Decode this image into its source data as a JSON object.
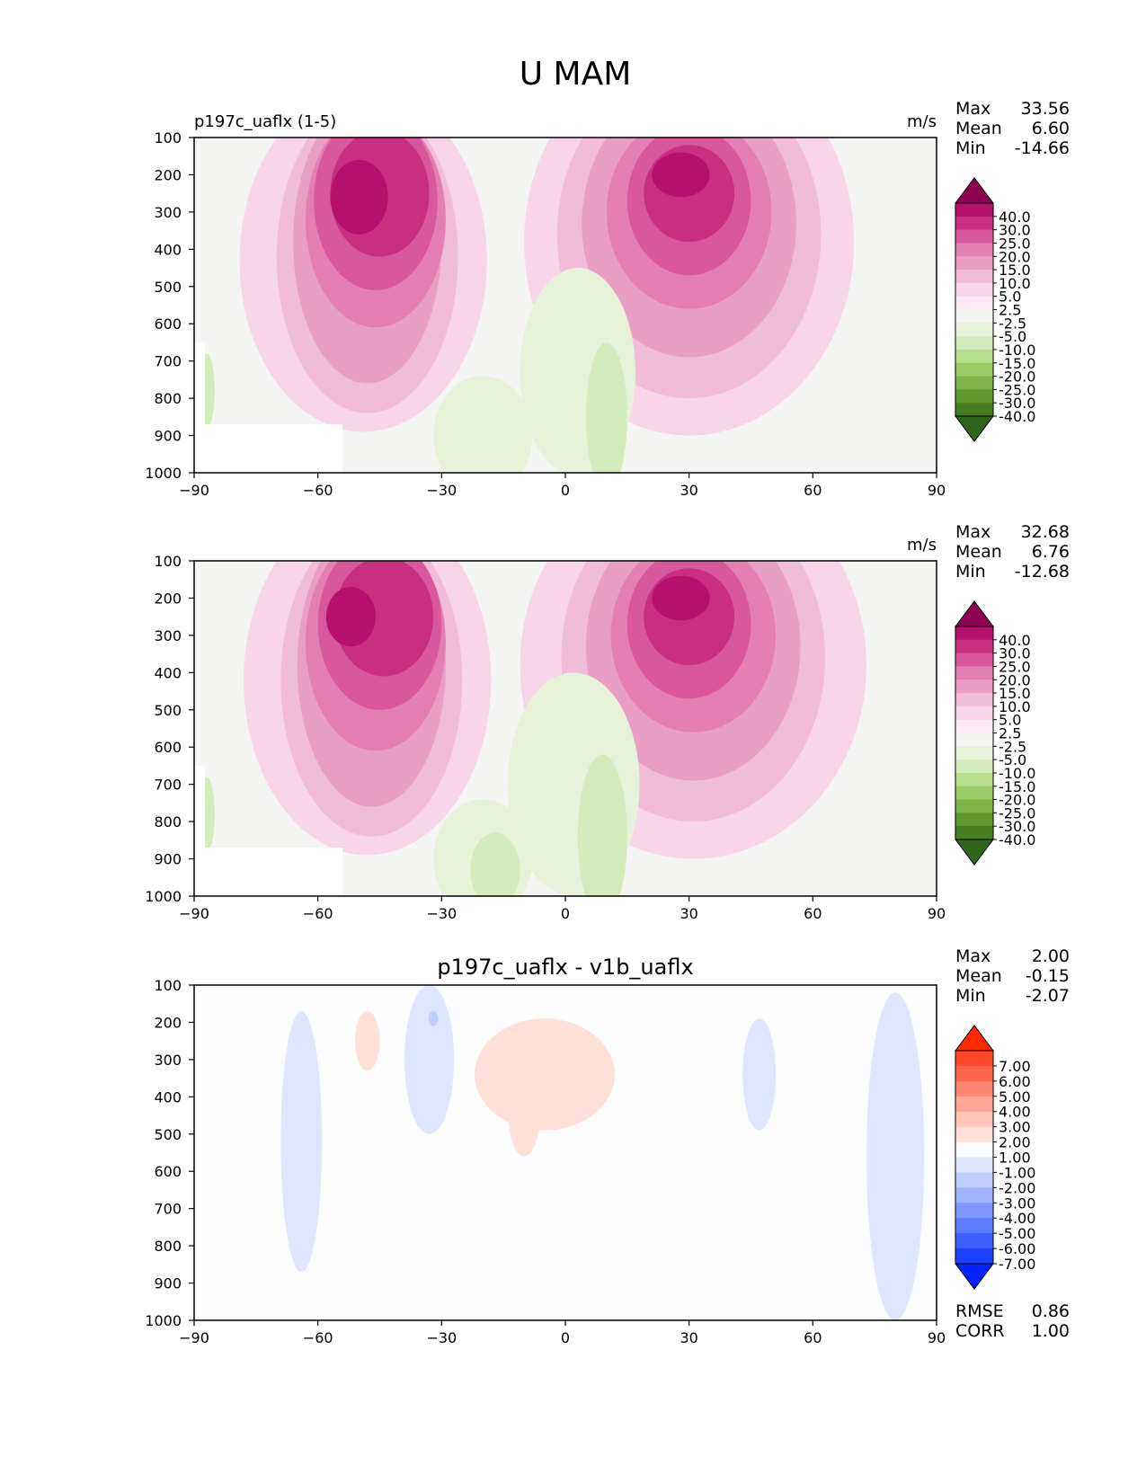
{
  "figure": {
    "title": "U MAM"
  },
  "chart_data": [
    {
      "type": "contour",
      "panel": "test",
      "title_left": "p197c_uaflx (1-5)",
      "title_center": "",
      "units": "m/s",
      "stats": [
        {
          "label": "Max",
          "value": "33.56"
        },
        {
          "label": "Mean",
          "value": "6.60"
        },
        {
          "label": "Min",
          "value": "-14.66"
        }
      ],
      "xlim": [
        -90,
        90
      ],
      "ylim": [
        1000,
        100
      ],
      "xticks": [
        "−90",
        "−60",
        "−30",
        "0",
        "30",
        "60",
        "90"
      ],
      "xtick_values": [
        -90,
        -60,
        -30,
        0,
        30,
        60,
        90
      ],
      "yticks": [
        "100",
        "200",
        "300",
        "400",
        "500",
        "600",
        "700",
        "800",
        "900",
        "1000"
      ],
      "ytick_values": [
        100,
        200,
        300,
        400,
        500,
        600,
        700,
        800,
        900,
        1000
      ],
      "colorbar": {
        "labels": [
          "40.0",
          "30.0",
          "25.0",
          "20.0",
          "15.0",
          "10.0",
          "5.0",
          "2.5",
          "-2.5",
          "-5.0",
          "-10.0",
          "-15.0",
          "-20.0",
          "-25.0",
          "-30.0",
          "-40.0"
        ],
        "colors": [
          "#8e0152",
          "#b5106e",
          "#c8307f",
          "#d9589b",
          "#e47fb4",
          "#e99ec6",
          "#f1bcda",
          "#f8d6e9",
          "#fbeaf3",
          "#f5f5f3",
          "#e8f2da",
          "#d4ecbc",
          "#b7de8d",
          "#9bcb66",
          "#7eb348",
          "#5f992f",
          "#477d22",
          "#2f641b"
        ],
        "label_step_ratio": 1
      },
      "blobs": [
        {
          "level": 1,
          "lat": -49,
          "p": 430,
          "rlat": 30,
          "rp": 460
        },
        {
          "level": 1,
          "lat": 30,
          "p": 380,
          "rlat": 40,
          "rp": 520
        },
        {
          "level": 2,
          "lat": -48,
          "p": 420,
          "rlat": 22,
          "rp": 420
        },
        {
          "level": 2,
          "lat": 30,
          "p": 360,
          "rlat": 32,
          "rp": 440
        },
        {
          "level": 3,
          "lat": -48,
          "p": 380,
          "rlat": 18,
          "rp": 380
        },
        {
          "level": 3,
          "lat": 30,
          "p": 330,
          "rlat": 26,
          "rp": 360
        },
        {
          "level": 4,
          "lat": -46,
          "p": 320,
          "rlat": 17,
          "rp": 290
        },
        {
          "level": 4,
          "lat": 30,
          "p": 300,
          "rlat": 20,
          "rp": 260
        },
        {
          "level": 5,
          "lat": -46,
          "p": 270,
          "rlat": 15,
          "rp": 240
        },
        {
          "level": 5,
          "lat": 30,
          "p": 270,
          "rlat": 15,
          "rp": 200
        },
        {
          "level": 6,
          "lat": -45,
          "p": 250,
          "rlat": 12,
          "rp": 170
        },
        {
          "level": 6,
          "lat": 30,
          "p": 250,
          "rlat": 11,
          "rp": 130
        },
        {
          "level": 7,
          "lat": -50,
          "p": 260,
          "rlat": 7,
          "rp": 100
        },
        {
          "level": 7,
          "lat": 28,
          "p": 200,
          "rlat": 7,
          "rp": 60
        },
        {
          "level": -1,
          "lat": 3,
          "p": 730,
          "rlat": 14,
          "rp": 280
        },
        {
          "level": -1,
          "lat": -20,
          "p": 900,
          "rlat": 12,
          "rp": 160
        },
        {
          "level": -2,
          "lat": 10,
          "p": 850,
          "rlat": 5,
          "rp": 200
        },
        {
          "level": -2,
          "lat": -87,
          "p": 780,
          "rlat": 2,
          "rp": 100
        }
      ],
      "mask_lat": -54,
      "mask_p": 870
    },
    {
      "type": "contour",
      "panel": "reference",
      "title_left": "",
      "title_center": "",
      "units": "m/s",
      "stats": [
        {
          "label": "Max",
          "value": "32.68"
        },
        {
          "label": "Mean",
          "value": "6.76"
        },
        {
          "label": "Min",
          "value": "-12.68"
        }
      ],
      "xlim": [
        -90,
        90
      ],
      "ylim": [
        1000,
        100
      ],
      "xticks": [
        "−90",
        "−60",
        "−30",
        "0",
        "30",
        "60",
        "90"
      ],
      "xtick_values": [
        -90,
        -60,
        -30,
        0,
        30,
        60,
        90
      ],
      "yticks": [
        "100",
        "200",
        "300",
        "400",
        "500",
        "600",
        "700",
        "800",
        "900",
        "1000"
      ],
      "ytick_values": [
        100,
        200,
        300,
        400,
        500,
        600,
        700,
        800,
        900,
        1000
      ],
      "colorbar": {
        "labels": [
          "40.0",
          "30.0",
          "25.0",
          "20.0",
          "15.0",
          "10.0",
          "5.0",
          "2.5",
          "-2.5",
          "-5.0",
          "-10.0",
          "-15.0",
          "-20.0",
          "-25.0",
          "-30.0",
          "-40.0"
        ],
        "colors": [
          "#8e0152",
          "#b5106e",
          "#c8307f",
          "#d9589b",
          "#e47fb4",
          "#e99ec6",
          "#f1bcda",
          "#f8d6e9",
          "#fbeaf3",
          "#f5f5f3",
          "#e8f2da",
          "#d4ecbc",
          "#b7de8d",
          "#9bcb66",
          "#7eb348",
          "#5f992f",
          "#477d22",
          "#2f641b"
        ],
        "label_step_ratio": 1
      },
      "blobs": [
        {
          "level": 1,
          "lat": -48,
          "p": 420,
          "rlat": 30,
          "rp": 470
        },
        {
          "level": 1,
          "lat": 31,
          "p": 380,
          "rlat": 42,
          "rp": 520
        },
        {
          "level": 2,
          "lat": -47,
          "p": 420,
          "rlat": 22,
          "rp": 420
        },
        {
          "level": 2,
          "lat": 31,
          "p": 360,
          "rlat": 32,
          "rp": 440
        },
        {
          "level": 3,
          "lat": -47,
          "p": 380,
          "rlat": 18,
          "rp": 380
        },
        {
          "level": 3,
          "lat": 31,
          "p": 330,
          "rlat": 26,
          "rp": 360
        },
        {
          "level": 4,
          "lat": -46,
          "p": 320,
          "rlat": 17,
          "rp": 290
        },
        {
          "level": 4,
          "lat": 31,
          "p": 300,
          "rlat": 20,
          "rp": 260
        },
        {
          "level": 5,
          "lat": -45,
          "p": 270,
          "rlat": 15,
          "rp": 230
        },
        {
          "level": 5,
          "lat": 30,
          "p": 270,
          "rlat": 15,
          "rp": 200
        },
        {
          "level": 6,
          "lat": -44,
          "p": 250,
          "rlat": 12,
          "rp": 160
        },
        {
          "level": 6,
          "lat": 30,
          "p": 250,
          "rlat": 11,
          "rp": 130
        },
        {
          "level": 7,
          "lat": -52,
          "p": 250,
          "rlat": 6,
          "rp": 80
        },
        {
          "level": 7,
          "lat": 28,
          "p": 200,
          "rlat": 7,
          "rp": 60
        },
        {
          "level": -1,
          "lat": 2,
          "p": 700,
          "rlat": 16,
          "rp": 300
        },
        {
          "level": -1,
          "lat": -20,
          "p": 900,
          "rlat": 12,
          "rp": 160
        },
        {
          "level": -2,
          "lat": 9,
          "p": 840,
          "rlat": 6,
          "rp": 220
        },
        {
          "level": -2,
          "lat": -17,
          "p": 930,
          "rlat": 6,
          "rp": 100
        },
        {
          "level": -2,
          "lat": -87,
          "p": 780,
          "rlat": 2,
          "rp": 100
        }
      ],
      "mask_lat": -54,
      "mask_p": 870
    },
    {
      "type": "contour",
      "panel": "difference",
      "title_left": "",
      "title_center": "p197c_uaflx - v1b_uaflx",
      "units": "",
      "stats": [
        {
          "label": "Max",
          "value": "2.00"
        },
        {
          "label": "Mean",
          "value": "-0.15"
        },
        {
          "label": "Min",
          "value": "-2.07"
        }
      ],
      "bottom_stats": [
        {
          "label": "RMSE",
          "value": "0.86"
        },
        {
          "label": "CORR",
          "value": "1.00"
        }
      ],
      "xlim": [
        -90,
        90
      ],
      "ylim": [
        1000,
        100
      ],
      "xticks": [
        "−90",
        "−60",
        "−30",
        "0",
        "30",
        "60",
        "90"
      ],
      "xtick_values": [
        -90,
        -60,
        -30,
        0,
        30,
        60,
        90
      ],
      "yticks": [
        "100",
        "200",
        "300",
        "400",
        "500",
        "600",
        "700",
        "800",
        "900",
        "1000"
      ],
      "ytick_values": [
        100,
        200,
        300,
        400,
        500,
        600,
        700,
        800,
        900,
        1000
      ],
      "colorbar": {
        "labels": [
          "7.00",
          "6.00",
          "5.00",
          "4.00",
          "3.00",
          "2.00",
          "1.00",
          "-1.00",
          "-2.00",
          "-3.00",
          "-4.00",
          "-5.00",
          "-6.00",
          "-7.00"
        ],
        "colors": [
          "#ff2a00",
          "#ff4626",
          "#ff664c",
          "#ff8671",
          "#ffa696",
          "#ffc4b8",
          "#ffe1da",
          "#fcfcfc",
          "#dfe6ff",
          "#c0ceff",
          "#9fb3ff",
          "#7f97ff",
          "#5c7bff",
          "#3c5eff",
          "#1c40ff",
          "#0022ff"
        ],
        "label_step_ratio": 1
      },
      "blobs": [
        {
          "level": -1,
          "lat": -64,
          "p": 520,
          "rlat": 5,
          "rp": 350
        },
        {
          "level": -1,
          "lat": -33,
          "p": 300,
          "rlat": 6,
          "rp": 200
        },
        {
          "level": -1,
          "lat": 47,
          "p": 340,
          "rlat": 4,
          "rp": 150
        },
        {
          "level": -1,
          "lat": 80,
          "p": 560,
          "rlat": 7,
          "rp": 440
        },
        {
          "level": -2,
          "lat": -32,
          "p": 190,
          "rlat": 1.2,
          "rp": 20
        },
        {
          "level": 1,
          "lat": -48,
          "p": 250,
          "rlat": 3,
          "rp": 80
        },
        {
          "level": 1,
          "lat": -5,
          "p": 340,
          "rlat": 17,
          "rp": 150
        },
        {
          "level": 1,
          "lat": -10,
          "p": 430,
          "rlat": 4,
          "rp": 130
        }
      ]
    }
  ]
}
